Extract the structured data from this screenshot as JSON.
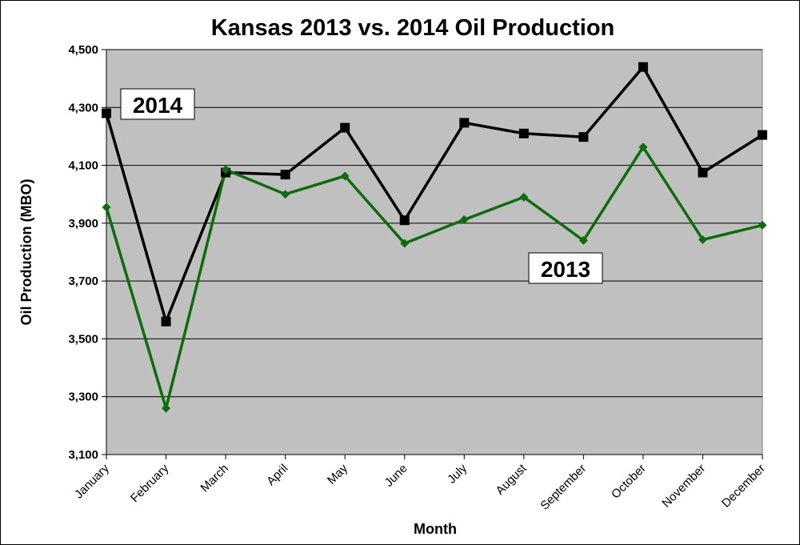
{
  "chart_data": {
    "type": "line",
    "title": "Kansas 2013 vs. 2014 Oil Production",
    "xlabel": "Month",
    "ylabel": "Oil Production (MBO)",
    "ylim": [
      3100,
      4500
    ],
    "yticks": [
      "3,100",
      "3,300",
      "3,500",
      "3,700",
      "3,900",
      "4,100",
      "4,300",
      "4,500"
    ],
    "ytick_values": [
      3100,
      3300,
      3500,
      3700,
      3900,
      4100,
      4300,
      4500
    ],
    "grid": true,
    "legend": "none (series labeled directly on plot)",
    "categories": [
      "January",
      "February",
      "March",
      "April",
      "May",
      "June",
      "July",
      "August",
      "September",
      "October",
      "November",
      "December"
    ],
    "series": [
      {
        "name": "2014",
        "color": "#000000",
        "marker": "square",
        "values": [
          4280,
          3560,
          4075,
          4068,
          4230,
          3910,
          4247,
          4210,
          4198,
          4440,
          4075,
          4205
        ]
      },
      {
        "name": "2013",
        "color": "#0b6e0b",
        "marker": "diamond",
        "values": [
          3955,
          3260,
          4085,
          4000,
          4063,
          3830,
          3912,
          3990,
          3840,
          4163,
          3843,
          3893
        ]
      }
    ],
    "plot_background": "#c0c0c0"
  }
}
